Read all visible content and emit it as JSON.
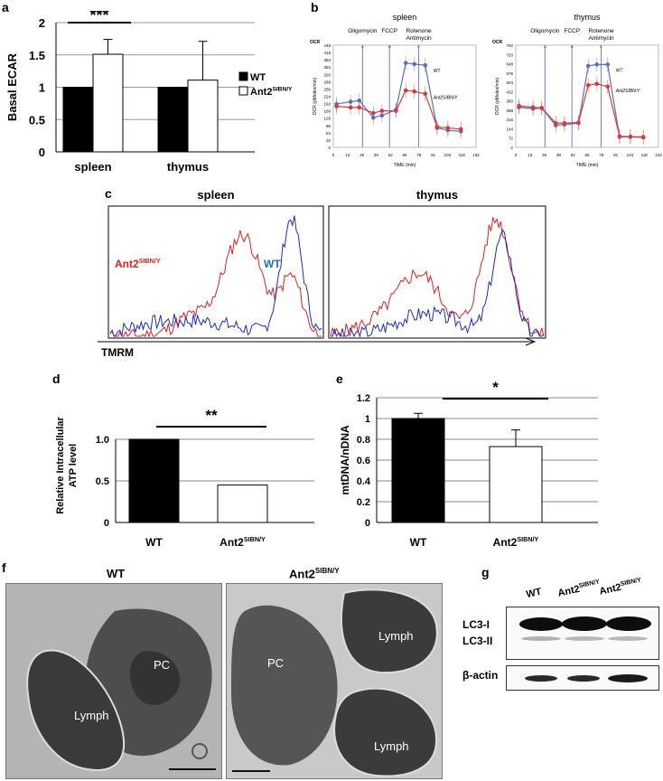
{
  "panel_labels": {
    "a": "a",
    "b": "b",
    "c": "c",
    "d": "d",
    "e": "e",
    "f": "f",
    "g": "g"
  },
  "chart_data": [
    {
      "id": "a",
      "type": "bar",
      "ylabel": "Basal ECAR",
      "categories": [
        "spleen",
        "thymus"
      ],
      "series": [
        {
          "name": "WT",
          "values": [
            1.0,
            1.0
          ],
          "color": "#000000"
        },
        {
          "name": "Ant2",
          "values": [
            1.51,
            1.11
          ],
          "errors": [
            0.23,
            0.6
          ],
          "color": "#ffffff"
        }
      ],
      "ylim": [
        0,
        2
      ],
      "yticks": [
        "0",
        "0.5",
        "1",
        "1.5",
        "2"
      ],
      "significance": "***",
      "legend": [
        {
          "label": "WT",
          "sup": ""
        },
        {
          "label": "Ant2",
          "sup": "SIBN/Y"
        }
      ]
    },
    {
      "id": "b-spleen",
      "type": "line",
      "title": "spleen",
      "ylabel": "OCR (pMoles/min)",
      "xlabel": "TIME (min)",
      "axis_unit": "OCR",
      "x": [
        3,
        16,
        24,
        37,
        45,
        58,
        67,
        75,
        85,
        96,
        106,
        118
      ],
      "series": [
        {
          "name": "WT",
          "values": [
            190,
            200,
            205,
            130,
            140,
            165,
            370,
            365,
            360,
            85,
            75,
            70
          ]
        },
        {
          "name": "Ant2SIBN/Y",
          "values": [
            180,
            175,
            175,
            150,
            160,
            160,
            250,
            245,
            235,
            90,
            85,
            80
          ]
        }
      ],
      "injections": [
        {
          "label": "Oligomycin",
          "port": "A",
          "x": 27
        },
        {
          "label": "FCCP",
          "port": "B",
          "x": 52
        },
        {
          "label": "Rotenone",
          "label2": "Antimycin",
          "port": "C",
          "x": 79
        }
      ],
      "series_labels": [
        "WT",
        "Ant2SIBN/Y"
      ],
      "yticks": [
        "0",
        "32",
        "64",
        "96",
        "128",
        "160",
        "192",
        "224",
        "256",
        "288",
        "320",
        "352",
        "384",
        "416",
        "448"
      ],
      "xticks": [
        "0",
        "13",
        "26",
        "39",
        "52",
        "65",
        "78",
        "91",
        "104",
        "118",
        "132"
      ],
      "ylim": [
        0,
        448
      ],
      "xlim": [
        0,
        132
      ]
    },
    {
      "id": "b-thymus",
      "type": "line",
      "title": "thymus",
      "ylabel": "OCR (pMoles/min)",
      "xlabel": "TIME (min)",
      "axis_unit": "OCR",
      "x": [
        3,
        16,
        24,
        37,
        45,
        58,
        67,
        75,
        85,
        96,
        106,
        118
      ],
      "series": [
        {
          "name": "WT",
          "values": [
            290,
            280,
            285,
            160,
            165,
            175,
            590,
            600,
            600,
            75,
            75,
            72
          ]
        },
        {
          "name": "Ant2SIBN/Y",
          "values": [
            300,
            290,
            285,
            175,
            175,
            180,
            450,
            460,
            440,
            80,
            78,
            75
          ]
        }
      ],
      "injections": [
        {
          "label": "Oligomycin",
          "port": "A",
          "x": 27
        },
        {
          "label": "FCCP",
          "port": "B",
          "x": 52
        },
        {
          "label": "Rotenone",
          "label2": "Antimycin",
          "port": "C",
          "x": 79
        }
      ],
      "series_labels": [
        "WT",
        "Ant2SIBN/Y"
      ],
      "yticks": [
        "-2",
        "72",
        "144",
        "216",
        "288",
        "360",
        "432",
        "504",
        "576",
        "648",
        "720",
        "792"
      ],
      "xticks": [
        "0",
        "13",
        "26",
        "39",
        "52",
        "65",
        "78",
        "91",
        "104",
        "118",
        "132"
      ],
      "ylim": [
        0,
        740
      ],
      "xlim": [
        0,
        132
      ]
    },
    {
      "id": "c",
      "type": "histogram",
      "titles": [
        "spleen",
        "thymus"
      ],
      "xlabel": "TMRM",
      "labels": [
        {
          "text": "Ant2",
          "sup": "SIBN/Y",
          "color": "#e02020"
        },
        {
          "text": "WT",
          "sup": "",
          "color": "#1f6fb4"
        }
      ]
    },
    {
      "id": "d",
      "type": "bar",
      "ylabel": "Relative Intracellular ATP level",
      "categories": [
        {
          "text": "WT",
          "sup": ""
        },
        {
          "text": "Ant2",
          "sup": "SIBN/Y"
        }
      ],
      "values": [
        1.0,
        0.45
      ],
      "ylim": [
        0,
        1.0
      ],
      "yticks": [
        "0",
        "0.5",
        "1.0"
      ],
      "significance": "**"
    },
    {
      "id": "e",
      "type": "bar",
      "ylabel": "mtDNA/nDNA",
      "categories": [
        {
          "text": "WT",
          "sup": ""
        },
        {
          "text": "Ant2",
          "sup": "SIBN/Y"
        }
      ],
      "values": [
        1.0,
        0.73
      ],
      "errors": [
        0.05,
        0.16
      ],
      "ylim": [
        0,
        1.2
      ],
      "yticks": [
        "0",
        "0.2",
        "0.4",
        "0.6",
        "0.8",
        "1",
        "1.2"
      ],
      "significance": "*"
    }
  ],
  "panel_f": {
    "title_wt": "WT",
    "title_mut": "Ant2",
    "title_mut_sup": "SIBN/Y",
    "wt_labels": [
      "PC",
      "Lymph"
    ],
    "mut_labels": [
      "Lymph",
      "PC",
      "Lymph"
    ]
  },
  "panel_g": {
    "lanes": [
      {
        "text": "WT",
        "sup": ""
      },
      {
        "text": "Ant2",
        "sup": "SIBN/Y"
      },
      {
        "text": "Ant2",
        "sup": "SIBN/Y"
      }
    ],
    "rows": [
      "LC3-I",
      "LC3-II",
      "β-actin"
    ]
  }
}
